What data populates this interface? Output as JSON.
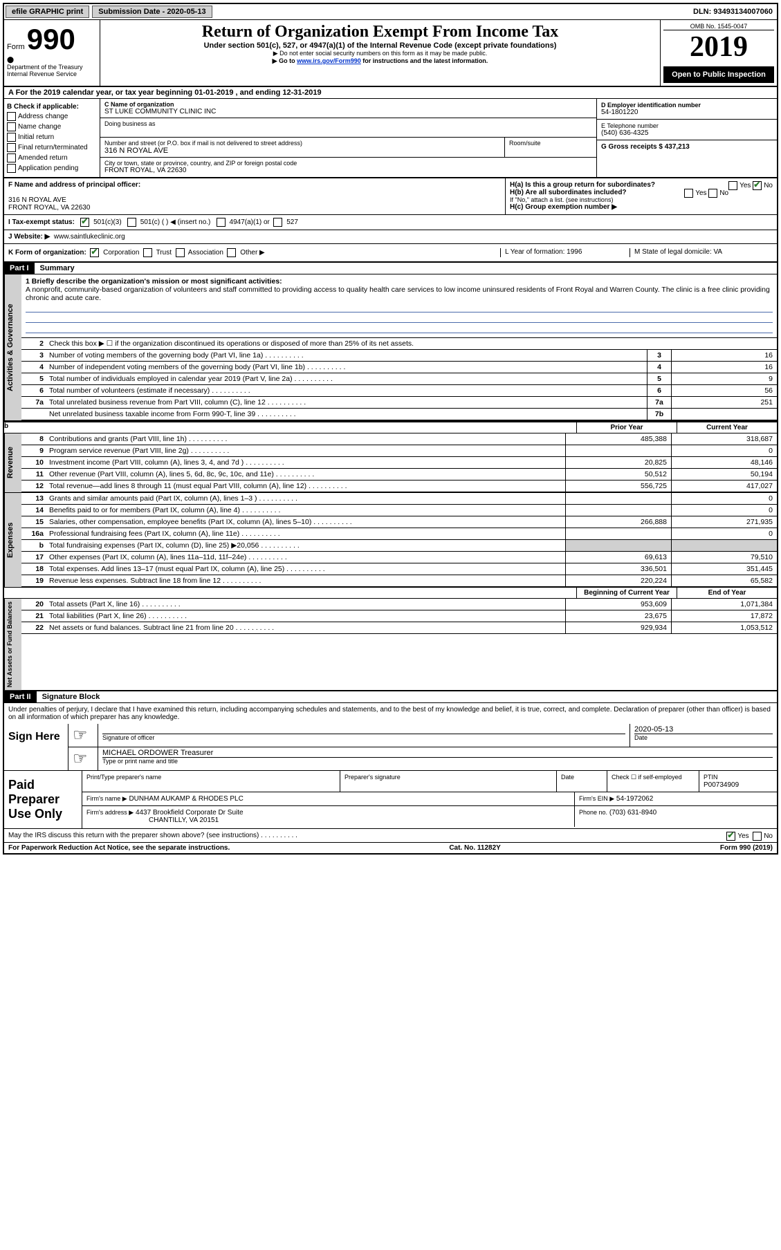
{
  "topbar": {
    "efile": "efile GRAPHIC print",
    "submission_label": "Submission Date - 2020-05-13",
    "dln": "DLN: 93493134007060"
  },
  "header": {
    "form_label": "Form",
    "form_number": "990",
    "dept": "Department of the Treasury",
    "irs": "Internal Revenue Service",
    "title": "Return of Organization Exempt From Income Tax",
    "subtitle": "Under section 501(c), 527, or 4947(a)(1) of the Internal Revenue Code (except private foundations)",
    "note1": "▶ Do not enter social security numbers on this form as it may be made public.",
    "note2_pre": "▶ Go to ",
    "note2_link": "www.irs.gov/Form990",
    "note2_post": " for instructions and the latest information.",
    "omb": "OMB No. 1545-0047",
    "year": "2019",
    "open": "Open to Public Inspection"
  },
  "section_a": "A For the 2019 calendar year, or tax year beginning 01-01-2019   , and ending 12-31-2019",
  "section_b": {
    "label": "B Check if applicable:",
    "opts": [
      "Address change",
      "Name change",
      "Initial return",
      "Final return/terminated",
      "Amended return",
      "Application pending"
    ]
  },
  "section_c": {
    "name_label": "C Name of organization",
    "name": "ST LUKE COMMUNITY CLINIC INC",
    "dba_label": "Doing business as",
    "street_label": "Number and street (or P.O. box if mail is not delivered to street address)",
    "room_label": "Room/suite",
    "street": "316 N ROYAL AVE",
    "city_label": "City or town, state or province, country, and ZIP or foreign postal code",
    "city": "FRONT ROYAL, VA  22630"
  },
  "section_d": {
    "label": "D Employer identification number",
    "ein": "54-1801220",
    "phone_label": "E Telephone number",
    "phone": "(540) 636-4325",
    "gross_label": "G Gross receipts $ 437,213"
  },
  "section_f": {
    "label": "F  Name and address of principal officer:",
    "addr1": "316 N ROYAL AVE",
    "addr2": "FRONT ROYAL, VA  22630"
  },
  "section_h": {
    "a": "H(a)  Is this a group return for subordinates?",
    "b": "H(b)  Are all subordinates included?",
    "note": "If \"No,\" attach a list. (see instructions)",
    "c": "H(c)  Group exemption number ▶"
  },
  "section_i": {
    "label": "I   Tax-exempt status:",
    "o1": "501(c)(3)",
    "o2": "501(c) (  ) ◀ (insert no.)",
    "o3": "4947(a)(1) or",
    "o4": "527"
  },
  "section_j": {
    "label": "J   Website: ▶",
    "url": "www.saintlukeclinic.org"
  },
  "section_k": {
    "label": "K Form of organization:",
    "corp": "Corporation",
    "trust": "Trust",
    "assoc": "Association",
    "other": "Other ▶",
    "l": "L Year of formation: 1996",
    "m": "M State of legal domicile: VA"
  },
  "part1": {
    "header": "Part I",
    "title": "Summary",
    "line1_label": "1  Briefly describe the organization's mission or most significant activities:",
    "line1_text": "A nonprofit, community-based organization of volunteers and staff committed to providing access to quality health care services to low income uninsured residents of Front Royal and Warren County. The clinic is a free clinic providing chronic and acute care.",
    "line2": "Check this box ▶ ☐ if the organization discontinued its operations or disposed of more than 25% of its net assets.",
    "rows_gov": [
      {
        "n": "3",
        "d": "Number of voting members of the governing body (Part VI, line 1a)",
        "b": "3",
        "v": "16"
      },
      {
        "n": "4",
        "d": "Number of independent voting members of the governing body (Part VI, line 1b)",
        "b": "4",
        "v": "16"
      },
      {
        "n": "5",
        "d": "Total number of individuals employed in calendar year 2019 (Part V, line 2a)",
        "b": "5",
        "v": "9"
      },
      {
        "n": "6",
        "d": "Total number of volunteers (estimate if necessary)",
        "b": "6",
        "v": "56"
      },
      {
        "n": "7a",
        "d": "Total unrelated business revenue from Part VIII, column (C), line 12",
        "b": "7a",
        "v": "251"
      },
      {
        "n": "",
        "d": "Net unrelated business taxable income from Form 990-T, line 39",
        "b": "7b",
        "v": ""
      }
    ],
    "col_prior": "Prior Year",
    "col_current": "Current Year",
    "col_boy": "Beginning of Current Year",
    "col_eoy": "End of Year",
    "rows_rev": [
      {
        "n": "8",
        "d": "Contributions and grants (Part VIII, line 1h)",
        "p": "485,388",
        "c": "318,687"
      },
      {
        "n": "9",
        "d": "Program service revenue (Part VIII, line 2g)",
        "p": "",
        "c": "0"
      },
      {
        "n": "10",
        "d": "Investment income (Part VIII, column (A), lines 3, 4, and 7d )",
        "p": "20,825",
        "c": "48,146"
      },
      {
        "n": "11",
        "d": "Other revenue (Part VIII, column (A), lines 5, 6d, 8c, 9c, 10c, and 11e)",
        "p": "50,512",
        "c": "50,194"
      },
      {
        "n": "12",
        "d": "Total revenue—add lines 8 through 11 (must equal Part VIII, column (A), line 12)",
        "p": "556,725",
        "c": "417,027"
      }
    ],
    "rows_exp": [
      {
        "n": "13",
        "d": "Grants and similar amounts paid (Part IX, column (A), lines 1–3 )",
        "p": "",
        "c": "0"
      },
      {
        "n": "14",
        "d": "Benefits paid to or for members (Part IX, column (A), line 4)",
        "p": "",
        "c": "0"
      },
      {
        "n": "15",
        "d": "Salaries, other compensation, employee benefits (Part IX, column (A), lines 5–10)",
        "p": "266,888",
        "c": "271,935"
      },
      {
        "n": "16a",
        "d": "Professional fundraising fees (Part IX, column (A), line 11e)",
        "p": "",
        "c": "0"
      },
      {
        "n": "b",
        "d": "Total fundraising expenses (Part IX, column (D), line 25) ▶20,056",
        "p": "grey",
        "c": "grey"
      },
      {
        "n": "17",
        "d": "Other expenses (Part IX, column (A), lines 11a–11d, 11f–24e)",
        "p": "69,613",
        "c": "79,510"
      },
      {
        "n": "18",
        "d": "Total expenses. Add lines 13–17 (must equal Part IX, column (A), line 25)",
        "p": "336,501",
        "c": "351,445"
      },
      {
        "n": "19",
        "d": "Revenue less expenses. Subtract line 18 from line 12",
        "p": "220,224",
        "c": "65,582"
      }
    ],
    "rows_net": [
      {
        "n": "20",
        "d": "Total assets (Part X, line 16)",
        "p": "953,609",
        "c": "1,071,384"
      },
      {
        "n": "21",
        "d": "Total liabilities (Part X, line 26)",
        "p": "23,675",
        "c": "17,872"
      },
      {
        "n": "22",
        "d": "Net assets or fund balances. Subtract line 21 from line 20",
        "p": "929,934",
        "c": "1,053,512"
      }
    ],
    "vlab_gov": "Activities & Governance",
    "vlab_rev": "Revenue",
    "vlab_exp": "Expenses",
    "vlab_net": "Net Assets or Fund Balances"
  },
  "part2": {
    "header": "Part II",
    "title": "Signature Block",
    "decl": "Under penalties of perjury, I declare that I have examined this return, including accompanying schedules and statements, and to the best of my knowledge and belief, it is true, correct, and complete. Declaration of preparer (other than officer) is based on all information of which preparer has any knowledge.",
    "sign_here": "Sign Here",
    "sig_officer": "Signature of officer",
    "sig_date": "2020-05-13",
    "date_label": "Date",
    "officer_name": "MICHAEL ORDOWER  Treasurer",
    "officer_label": "Type or print name and title",
    "paid": "Paid Preparer Use Only",
    "prep_name_label": "Print/Type preparer's name",
    "prep_sig_label": "Preparer's signature",
    "prep_date_label": "Date",
    "check_label": "Check ☐ if self-employed",
    "ptin_label": "PTIN",
    "ptin": "P00734909",
    "firm_name_label": "Firm's name   ▶",
    "firm_name": "DUNHAM AUKAMP & RHODES PLC",
    "firm_ein_label": "Firm's EIN ▶",
    "firm_ein": "54-1972062",
    "firm_addr_label": "Firm's address ▶",
    "firm_addr1": "4437 Brookfield Corporate Dr Suite",
    "firm_addr2": "CHANTILLY, VA  20151",
    "firm_phone_label": "Phone no.",
    "firm_phone": "(703) 631-8940",
    "discuss": "May the IRS discuss this return with the preparer shown above? (see instructions)",
    "yes": "Yes",
    "no": "No"
  },
  "footer": {
    "left": "For Paperwork Reduction Act Notice, see the separate instructions.",
    "center": "Cat. No. 11282Y",
    "right": "Form 990 (2019)"
  }
}
